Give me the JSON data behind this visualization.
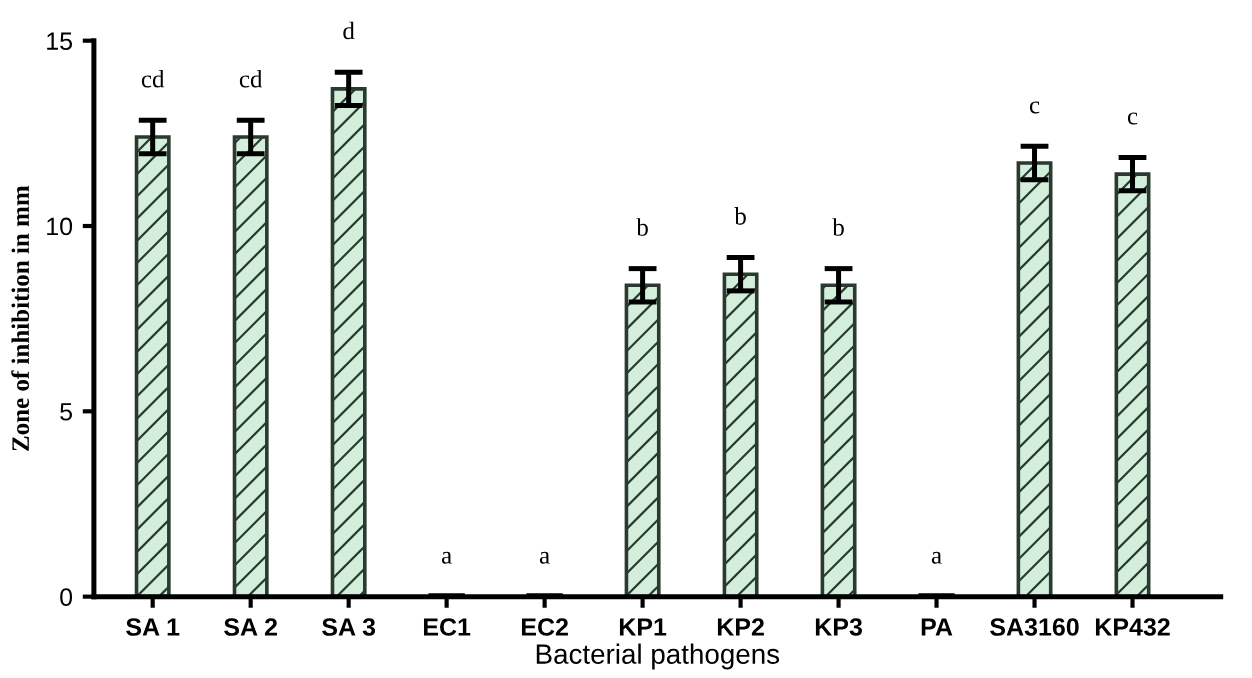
{
  "chart_data": {
    "type": "bar",
    "xlabel": "Bacterial pathogens",
    "ylabel": "Zone of inhibition in mm",
    "categories": [
      "SA 1",
      "SA 2",
      "SA 3",
      "EC1",
      "EC2",
      "KP1",
      "KP2",
      "KP3",
      "PA",
      "SA3160",
      "KP432"
    ],
    "values": [
      12.4,
      12.4,
      13.7,
      0,
      0,
      8.4,
      8.7,
      8.4,
      0,
      11.7,
      11.4
    ],
    "errors": [
      0.45,
      0.45,
      0.45,
      null,
      null,
      0.45,
      0.45,
      0.45,
      null,
      0.45,
      0.45
    ],
    "color": "#d4eedc",
    "ylim": [
      0,
      15
    ],
    "yticks": [
      0,
      5,
      10,
      15
    ],
    "grid": false,
    "annotations": [
      "cd",
      "cd",
      "d",
      "a",
      "a",
      "b",
      "b",
      "b",
      "a",
      "c",
      "c"
    ]
  }
}
